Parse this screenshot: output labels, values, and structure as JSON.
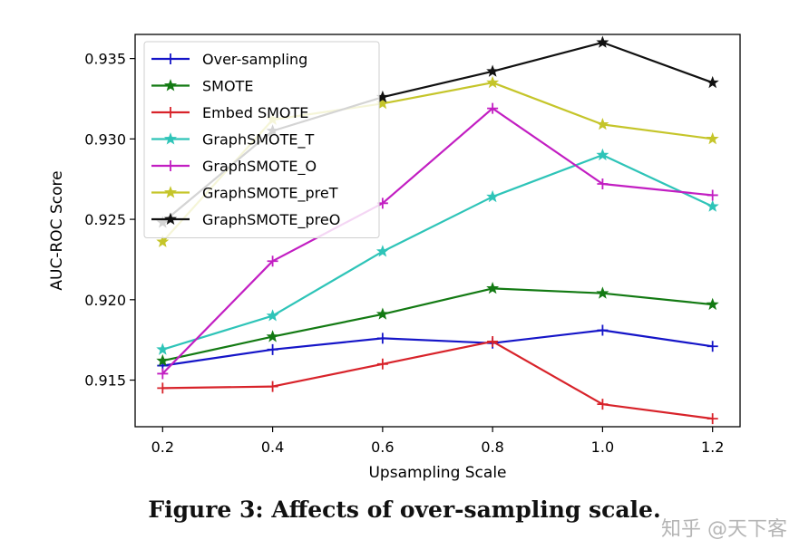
{
  "chart_data": {
    "type": "line",
    "title": "",
    "xlabel": "Upsampling Scale",
    "ylabel": "AUC-ROC Score",
    "x": [
      0.2,
      0.4,
      0.6,
      0.8,
      1.0,
      1.2
    ],
    "x_tick_labels": [
      "0.2",
      "0.4",
      "0.6",
      "0.8",
      "1.0",
      "1.2"
    ],
    "y_ticks": [
      0.915,
      0.92,
      0.925,
      0.93,
      0.935
    ],
    "y_tick_labels": [
      "0.915",
      "0.920",
      "0.925",
      "0.930",
      "0.935"
    ],
    "xlim": [
      0.15,
      1.25
    ],
    "ylim": [
      0.9121,
      0.9365
    ],
    "grid": false,
    "legend_position": "top-left",
    "series": [
      {
        "name": "Over-sampling",
        "color": "#1515c8",
        "marker": "plus",
        "values": [
          0.9159,
          0.9169,
          0.9176,
          0.9173,
          0.9181,
          0.9171
        ]
      },
      {
        "name": "SMOTE",
        "color": "#137a13",
        "marker": "star",
        "values": [
          0.9162,
          0.9177,
          0.9191,
          0.9207,
          0.9204,
          0.9197
        ]
      },
      {
        "name": "Embed SMOTE",
        "color": "#d8232a",
        "marker": "plus",
        "values": [
          0.9145,
          0.9146,
          0.916,
          0.9174,
          0.9135,
          0.9126
        ]
      },
      {
        "name": "GraphSMOTE_T",
        "color": "#2ec4b8",
        "marker": "star",
        "values": [
          0.9169,
          0.919,
          0.923,
          0.9264,
          0.929,
          0.9258
        ]
      },
      {
        "name": "GraphSMOTE_O",
        "color": "#c21ec2",
        "marker": "plus",
        "values": [
          0.9154,
          0.9224,
          0.926,
          0.9319,
          0.9272,
          0.9265
        ]
      },
      {
        "name": "GraphSMOTE_preT",
        "color": "#c5c52a",
        "marker": "star",
        "values": [
          0.9236,
          0.9312,
          0.9322,
          0.9335,
          0.9309,
          0.93
        ]
      },
      {
        "name": "GraphSMOTE_preO",
        "color": "#111111",
        "marker": "star",
        "values": [
          0.9248,
          0.9305,
          0.9326,
          0.9342,
          0.936,
          0.9335
        ]
      }
    ]
  },
  "caption": "Figure 3: Affects of over-sampling scale.",
  "watermark": "知乎 @天下客"
}
